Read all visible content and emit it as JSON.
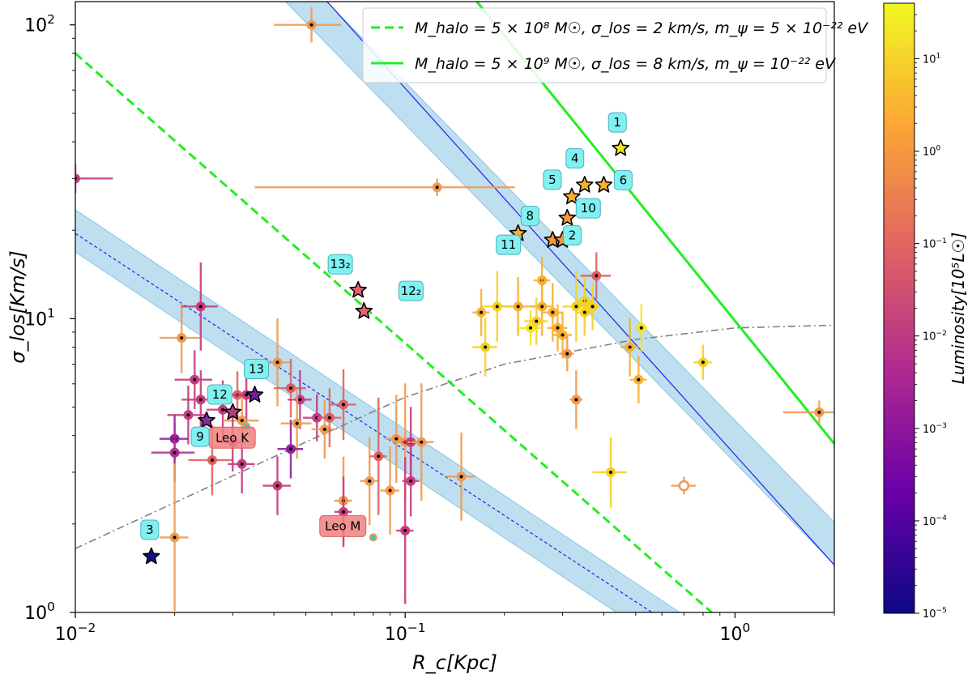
{
  "chart_data": {
    "type": "scatter",
    "title": "",
    "xlabel": "R_c[Kpc]",
    "ylabel": "σ_los[Km/s]",
    "xscale": "log",
    "yscale": "log",
    "xlim": [
      0.01,
      2.0
    ],
    "ylim": [
      1.0,
      120.0
    ],
    "x_ticks": [
      {
        "value": 0.01,
        "base": "10",
        "exp": "−2"
      },
      {
        "value": 0.1,
        "base": "10",
        "exp": "−1"
      },
      {
        "value": 1.0,
        "base": "10",
        "exp": "0"
      }
    ],
    "y_ticks": [
      {
        "value": 1,
        "base": "10",
        "exp": "0"
      },
      {
        "value": 10,
        "base": "10",
        "exp": "1"
      },
      {
        "value": 100,
        "base": "10",
        "exp": "2"
      }
    ],
    "legend_position": "top-right",
    "legend": [
      {
        "style": "dashed",
        "color": "#22ee22",
        "text": "M_halo = 5 × 10⁸ M☉, σ_los = 2 km/s, m_ψ = 5 × 10⁻²² eV"
      },
      {
        "style": "solid",
        "color": "#22ee22",
        "text": "M_halo = 5 × 10⁹ M☉, σ_los = 8 km/s, m_ψ = 10⁻²² eV"
      }
    ],
    "lines": [
      {
        "name": "green-solid",
        "style": "solid",
        "color": "#22ee22",
        "points": [
          [
            0.165,
            120
          ],
          [
            2.0,
            3.75
          ]
        ]
      },
      {
        "name": "green-dashed",
        "style": "dashed",
        "color": "#22ee22",
        "points": [
          [
            0.01,
            80
          ],
          [
            0.85,
            1.0
          ]
        ]
      },
      {
        "name": "blue-solid-band",
        "style": "solid",
        "color": "#2020ee",
        "points": [
          [
            0.058,
            120
          ],
          [
            2.0,
            1.45
          ]
        ]
      },
      {
        "name": "blue-dashed-band",
        "style": "dashed",
        "color": "#2020ee",
        "points": [
          [
            0.01,
            19.5
          ],
          [
            0.56,
            1.0
          ]
        ]
      },
      {
        "name": "gray-dashdot",
        "style": "dashdot",
        "color": "#808080",
        "points": [
          [
            0.01,
            1.65
          ],
          [
            0.05,
            3.8
          ],
          [
            0.1,
            5.4
          ],
          [
            0.2,
            7.0
          ],
          [
            0.5,
            8.5
          ],
          [
            1.0,
            9.3
          ],
          [
            2.0,
            9.5
          ]
        ]
      }
    ],
    "colorbar": {
      "label": "Luminosity[10⁵L☉]",
      "min_exp": -5,
      "max_exp": 1.6,
      "ticks": [
        {
          "base": "10",
          "exp": "1"
        },
        {
          "base": "10",
          "exp": "0"
        },
        {
          "base": "10",
          "exp": "−1"
        },
        {
          "base": "10",
          "exp": "−2"
        },
        {
          "base": "10",
          "exp": "−3"
        },
        {
          "base": "10",
          "exp": "−4"
        },
        {
          "base": "10",
          "exp": "−5"
        }
      ],
      "colors": [
        "#0d0887",
        "#6a00a8",
        "#b12a90",
        "#e16462",
        "#fca636",
        "#f0f921"
      ]
    },
    "stars": [
      {
        "label": "1",
        "x": 0.45,
        "y": 38.0,
        "color": "#f5e41e",
        "tag_color": "#80f0f0"
      },
      {
        "label": "4",
        "x": 0.35,
        "y": 28.5,
        "color": "#f6b030",
        "tag_color": "#80f0f0"
      },
      {
        "label": "6",
        "x": 0.4,
        "y": 28.5,
        "color": "#f6b030",
        "tag_color": "#80f0f0"
      },
      {
        "label": "5",
        "x": 0.32,
        "y": 26.0,
        "color": "#f6b030",
        "tag_color": "#80f0f0"
      },
      {
        "label": "10",
        "x": 0.31,
        "y": 22.0,
        "color": "#f09a40",
        "tag_color": "#80f0f0"
      },
      {
        "label": "8",
        "x": 0.28,
        "y": 18.5,
        "color": "#f09a40",
        "tag_color": "#80f0f0"
      },
      {
        "label": "2",
        "x": 0.3,
        "y": 18.5,
        "color": "#f09a40",
        "tag_color": "#80f0f0"
      },
      {
        "label": "11",
        "x": 0.22,
        "y": 19.5,
        "color": "#f6b030",
        "tag_color": "#80f0f0"
      },
      {
        "label": "13₂",
        "x": 0.072,
        "y": 12.5,
        "color": "#e86070",
        "tag_color": "#80f0f0"
      },
      {
        "label": "12₂",
        "x": 0.075,
        "y": 10.6,
        "color": "#e86070",
        "tag_color": "#80f0f0"
      },
      {
        "label": "13",
        "x": 0.035,
        "y": 5.5,
        "color": "#7020a0",
        "tag_color": "#80f0f0"
      },
      {
        "label": "12",
        "x": 0.03,
        "y": 4.8,
        "color": "#b04080",
        "tag_color": "#80f0f0"
      },
      {
        "label": "9",
        "x": 0.025,
        "y": 4.5,
        "color": "#8030a0",
        "tag_color": "#80f0f0"
      },
      {
        "label": "3",
        "x": 0.017,
        "y": 1.55,
        "color": "#101080",
        "tag_color": "#80f0f0"
      }
    ],
    "named_points": [
      {
        "label": "Leo K",
        "x": 0.033,
        "y": 4.3,
        "tag_color": "#f08080"
      },
      {
        "label": "Leo M",
        "x": 0.08,
        "y": 1.8,
        "tag_color": "#f08080"
      }
    ],
    "points": [
      {
        "x": 0.052,
        "y": 100,
        "xe": 0.012,
        "ye": 0.06,
        "c": "#f09a50"
      },
      {
        "x": 0.125,
        "y": 28,
        "xe": 0.09,
        "ye": 0.03,
        "c": "#f09a50"
      },
      {
        "x": 0.01,
        "y": 30,
        "xe": 0.003,
        "ye": 0.05,
        "c": "#c83c80"
      },
      {
        "x": 0.38,
        "y": 14,
        "xe": 0.04,
        "ye": 0.08,
        "c": "#e06060"
      },
      {
        "x": 0.26,
        "y": 13.5,
        "xe": 0.015,
        "ye": 0.08,
        "c": "#f6b030"
      },
      {
        "x": 0.22,
        "y": 11,
        "xe": 0.03,
        "ye": 0.1,
        "c": "#f6b030"
      },
      {
        "x": 0.26,
        "y": 11,
        "xe": 0.02,
        "ye": 0.1,
        "c": "#f6b030"
      },
      {
        "x": 0.28,
        "y": 10.5,
        "xe": 0.02,
        "ye": 0.1,
        "c": "#f6b030"
      },
      {
        "x": 0.33,
        "y": 11,
        "xe": 0.03,
        "ye": 0.12,
        "c": "#f5d020"
      },
      {
        "x": 0.35,
        "y": 11.5,
        "xe": 0.02,
        "ye": 0.08,
        "c": "#f5d020"
      },
      {
        "x": 0.35,
        "y": 10.5,
        "xe": 0.02,
        "ye": 0.08,
        "c": "#f5d020"
      },
      {
        "x": 0.37,
        "y": 11,
        "xe": 0.02,
        "ye": 0.08,
        "c": "#f5d020"
      },
      {
        "x": 0.17,
        "y": 10.5,
        "xe": 0.01,
        "ye": 0.08,
        "c": "#f6b030"
      },
      {
        "x": 0.19,
        "y": 11,
        "xe": 0.02,
        "ye": 0.12,
        "c": "#f5d020"
      },
      {
        "x": 0.24,
        "y": 9.3,
        "xe": 0.02,
        "ye": 0.06,
        "c": "#f5e41e"
      },
      {
        "x": 0.25,
        "y": 9.8,
        "xe": 0.02,
        "ye": 0.08,
        "c": "#f5d020"
      },
      {
        "x": 0.29,
        "y": 9.3,
        "xe": 0.02,
        "ye": 0.08,
        "c": "#f6b030"
      },
      {
        "x": 0.3,
        "y": 8.8,
        "xe": 0.02,
        "ye": 0.08,
        "c": "#f6b030"
      },
      {
        "x": 0.175,
        "y": 8,
        "xe": 0.015,
        "ye": 0.1,
        "c": "#f5d020"
      },
      {
        "x": 0.31,
        "y": 7.6,
        "xe": 0.015,
        "ye": 0.06,
        "c": "#f09a50"
      },
      {
        "x": 0.52,
        "y": 9.3,
        "xe": 0.02,
        "ye": 0.08,
        "c": "#f5e41e"
      },
      {
        "x": 0.48,
        "y": 8,
        "xe": 0.03,
        "ye": 0.1,
        "c": "#f6b030"
      },
      {
        "x": 0.8,
        "y": 7.1,
        "xe": 0.05,
        "ye": 0.06,
        "c": "#f5d020"
      },
      {
        "x": 0.51,
        "y": 6.2,
        "xe": 0.03,
        "ye": 0.08,
        "c": "#f6b030"
      },
      {
        "x": 0.33,
        "y": 5.3,
        "xe": 0.015,
        "ye": 0.1,
        "c": "#f09a50"
      },
      {
        "x": 1.8,
        "y": 4.8,
        "xe": 0.4,
        "ye": 0.04,
        "c": "#f09a50"
      },
      {
        "x": 0.42,
        "y": 3.0,
        "xe": 0.05,
        "ye": 0.12,
        "c": "#f5d020"
      },
      {
        "x": 0.7,
        "y": 2.7,
        "xe": 0.06,
        "ye": 0.03,
        "c": "#f09a50",
        "open": true
      },
      {
        "x": 0.021,
        "y": 8.6,
        "xe": 0.003,
        "ye": 0.12,
        "c": "#f09a50"
      },
      {
        "x": 0.024,
        "y": 11,
        "xe": 0.003,
        "ye": 0.15,
        "c": "#c83c80"
      },
      {
        "x": 0.023,
        "y": 6.2,
        "xe": 0.003,
        "ye": 0.1,
        "c": "#c83c80"
      },
      {
        "x": 0.024,
        "y": 5.3,
        "xe": 0.003,
        "ye": 0.1,
        "c": "#c83c80"
      },
      {
        "x": 0.022,
        "y": 4.7,
        "xe": 0.003,
        "ye": 0.1,
        "c": "#c83c80"
      },
      {
        "x": 0.02,
        "y": 3.9,
        "xe": 0.002,
        "ye": 0.08,
        "c": "#9020a0"
      },
      {
        "x": 0.02,
        "y": 3.5,
        "xe": 0.003,
        "ye": 0.1,
        "c": "#b03090"
      },
      {
        "x": 0.026,
        "y": 3.3,
        "xe": 0.004,
        "ye": 0.12,
        "c": "#e06060"
      },
      {
        "x": 0.028,
        "y": 4.9,
        "xe": 0.003,
        "ye": 0.1,
        "c": "#c83c80"
      },
      {
        "x": 0.031,
        "y": 5.5,
        "xe": 0.004,
        "ye": 0.08,
        "c": "#e06060"
      },
      {
        "x": 0.033,
        "y": 5.5,
        "xe": 0.003,
        "ye": 0.1,
        "c": "#c83c80"
      },
      {
        "x": 0.032,
        "y": 4.5,
        "xe": 0.004,
        "ye": 0.08,
        "c": "#f09a50"
      },
      {
        "x": 0.03,
        "y": 3.8,
        "xe": 0.003,
        "ye": 0.1,
        "c": "#c83c80"
      },
      {
        "x": 0.032,
        "y": 3.2,
        "xe": 0.003,
        "ye": 0.1,
        "c": "#c83c80"
      },
      {
        "x": 0.041,
        "y": 7.1,
        "xe": 0.004,
        "ye": 0.15,
        "c": "#f09a50"
      },
      {
        "x": 0.045,
        "y": 5.8,
        "xe": 0.005,
        "ye": 0.1,
        "c": "#e06060"
      },
      {
        "x": 0.048,
        "y": 5.3,
        "xe": 0.004,
        "ye": 0.1,
        "c": "#c83c80"
      },
      {
        "x": 0.047,
        "y": 4.4,
        "xe": 0.005,
        "ye": 0.12,
        "c": "#f09a50"
      },
      {
        "x": 0.045,
        "y": 3.6,
        "xe": 0.004,
        "ye": 0.1,
        "c": "#9020a0"
      },
      {
        "x": 0.041,
        "y": 2.7,
        "xe": 0.004,
        "ye": 0.1,
        "c": "#c83c80"
      },
      {
        "x": 0.054,
        "y": 4.6,
        "xe": 0.005,
        "ye": 0.08,
        "c": "#c83c80"
      },
      {
        "x": 0.057,
        "y": 4.2,
        "xe": 0.005,
        "ye": 0.1,
        "c": "#f09a50"
      },
      {
        "x": 0.059,
        "y": 4.6,
        "xe": 0.005,
        "ye": 0.1,
        "c": "#e06060"
      },
      {
        "x": 0.065,
        "y": 5.1,
        "xe": 0.006,
        "ye": 0.12,
        "c": "#e06060"
      },
      {
        "x": 0.065,
        "y": 2.4,
        "xe": 0.004,
        "ye": 0.15,
        "c": "#f09a50"
      },
      {
        "x": 0.065,
        "y": 2.2,
        "xe": 0.004,
        "ye": 0.12,
        "c": "#c83c80"
      },
      {
        "x": 0.078,
        "y": 2.8,
        "xe": 0.005,
        "ye": 0.15,
        "c": "#f09a50"
      },
      {
        "x": 0.083,
        "y": 3.4,
        "xe": 0.005,
        "ye": 0.2,
        "c": "#e06060"
      },
      {
        "x": 0.09,
        "y": 2.6,
        "xe": 0.006,
        "ye": 0.15,
        "c": "#f09a50"
      },
      {
        "x": 0.094,
        "y": 3.9,
        "xe": 0.007,
        "ye": 0.15,
        "c": "#f09a50"
      },
      {
        "x": 0.1,
        "y": 3.8,
        "xe": 0.006,
        "ye": 0.2,
        "c": "#f09a50"
      },
      {
        "x": 0.104,
        "y": 3.8,
        "xe": 0.006,
        "ye": 0.12,
        "c": "#c83c80"
      },
      {
        "x": 0.104,
        "y": 2.8,
        "xe": 0.006,
        "ye": 0.12,
        "c": "#c83c80"
      },
      {
        "x": 0.112,
        "y": 3.8,
        "xe": 0.01,
        "ye": 0.2,
        "c": "#f09a50"
      },
      {
        "x": 0.1,
        "y": 1.9,
        "xe": 0.006,
        "ye": 0.25,
        "c": "#c83c80"
      },
      {
        "x": 0.148,
        "y": 2.9,
        "xe": 0.015,
        "ye": 0.15,
        "c": "#f09a50"
      },
      {
        "x": 0.02,
        "y": 1.8,
        "xe": 0.002,
        "ye": 0.25,
        "c": "#f09a50"
      }
    ]
  }
}
